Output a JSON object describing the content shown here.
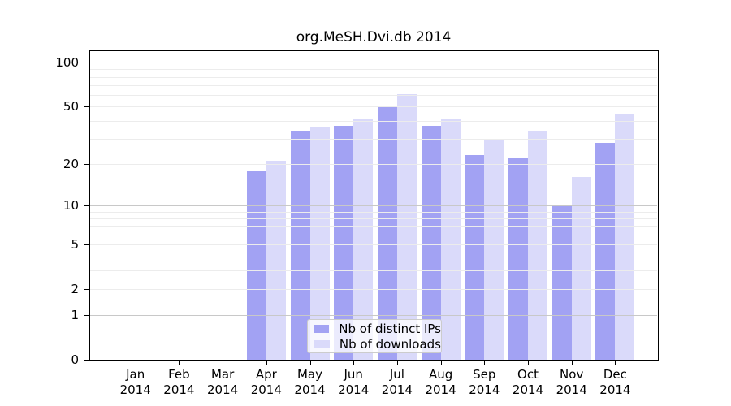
{
  "page": {
    "background": "#ffffff"
  },
  "chart_data": {
    "type": "bar",
    "title": "org.MeSH.Dvi.db 2014",
    "categories": [
      "Jan",
      "Feb",
      "Mar",
      "Apr",
      "May",
      "Jun",
      "Jul",
      "Aug",
      "Sep",
      "Oct",
      "Nov",
      "Dec"
    ],
    "year_label": "2014",
    "series": [
      {
        "name": "Nb of distinct IPs",
        "color": "#a2a2f3",
        "values": [
          0,
          0,
          0,
          18,
          34,
          37,
          50,
          37,
          23,
          22,
          10,
          28
        ]
      },
      {
        "name": "Nb of downloads",
        "color": "#dadafa",
        "values": [
          0,
          0,
          0,
          21,
          36,
          41,
          61,
          41,
          29,
          34,
          16,
          44
        ]
      }
    ],
    "xlabel": "",
    "ylabel": "",
    "y_axis": {
      "scale": "log1p",
      "ticks": [
        0,
        1,
        2,
        5,
        10,
        20,
        50,
        100
      ],
      "major_grid": [
        1,
        10,
        100
      ],
      "minor_grid": [
        2,
        3,
        4,
        5,
        6,
        7,
        8,
        9,
        20,
        30,
        40,
        50,
        60,
        70,
        80,
        90
      ],
      "range": [
        0,
        120
      ]
    },
    "grid": true,
    "legend": {
      "location": "lower center"
    },
    "colors": {
      "major_grid": "#c8c8c8",
      "minor_grid": "#ececec",
      "axis": "#000000",
      "background": "#ffffff"
    }
  }
}
